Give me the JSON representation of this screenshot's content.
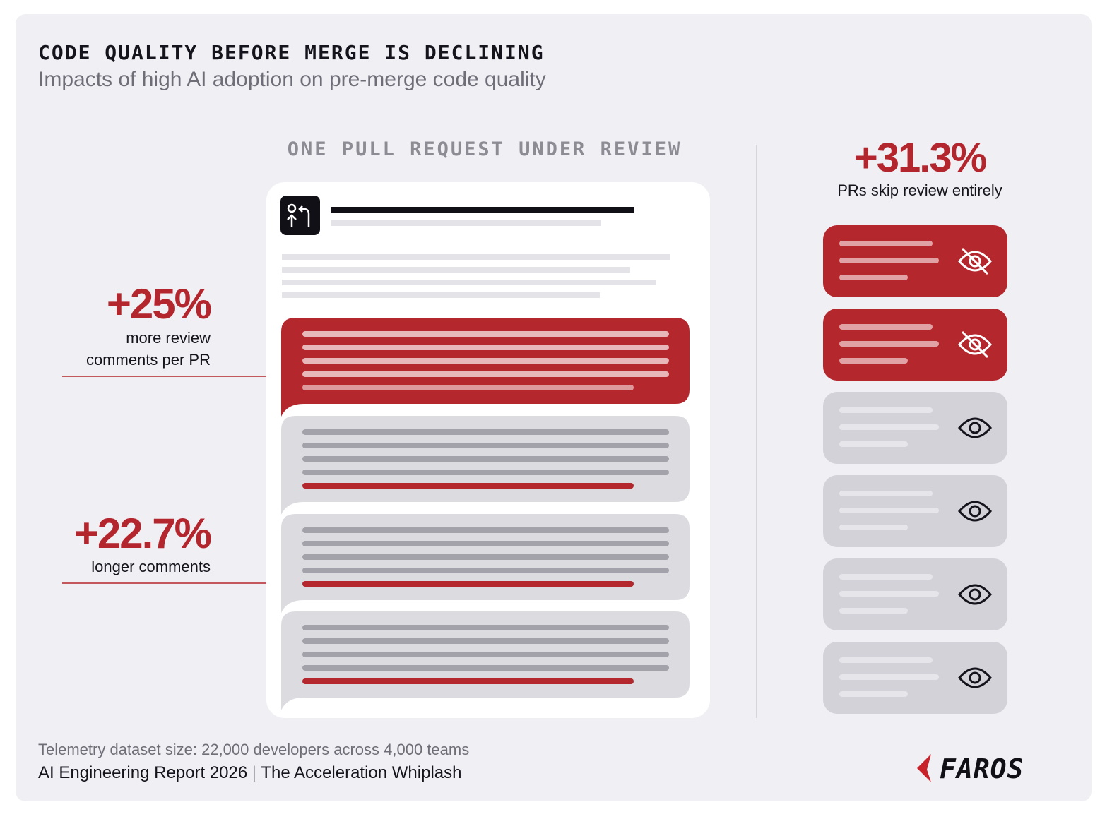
{
  "header": {
    "title": "CODE QUALITY BEFORE MERGE IS DECLINING",
    "subtitle": "Impacts of high AI adoption on pre-merge code quality"
  },
  "panel": {
    "heading": "ONE PULL REQUEST UNDER REVIEW"
  },
  "callouts": [
    {
      "stat": "+25%",
      "lines": [
        "more review",
        "comments per PR"
      ]
    },
    {
      "stat": "+22.7%",
      "lines": [
        "longer comments"
      ]
    }
  ],
  "skip": {
    "stat": "+31.3%",
    "label": "PRs skip review entirely"
  },
  "footer": {
    "dataset": "Telemetry dataset size: 22,000 developers across 4,000 teams",
    "report": "AI Engineering Report 2026",
    "separator": "|",
    "subtitle": "The Acceleration Whiplash"
  },
  "logo": "FAROS"
}
